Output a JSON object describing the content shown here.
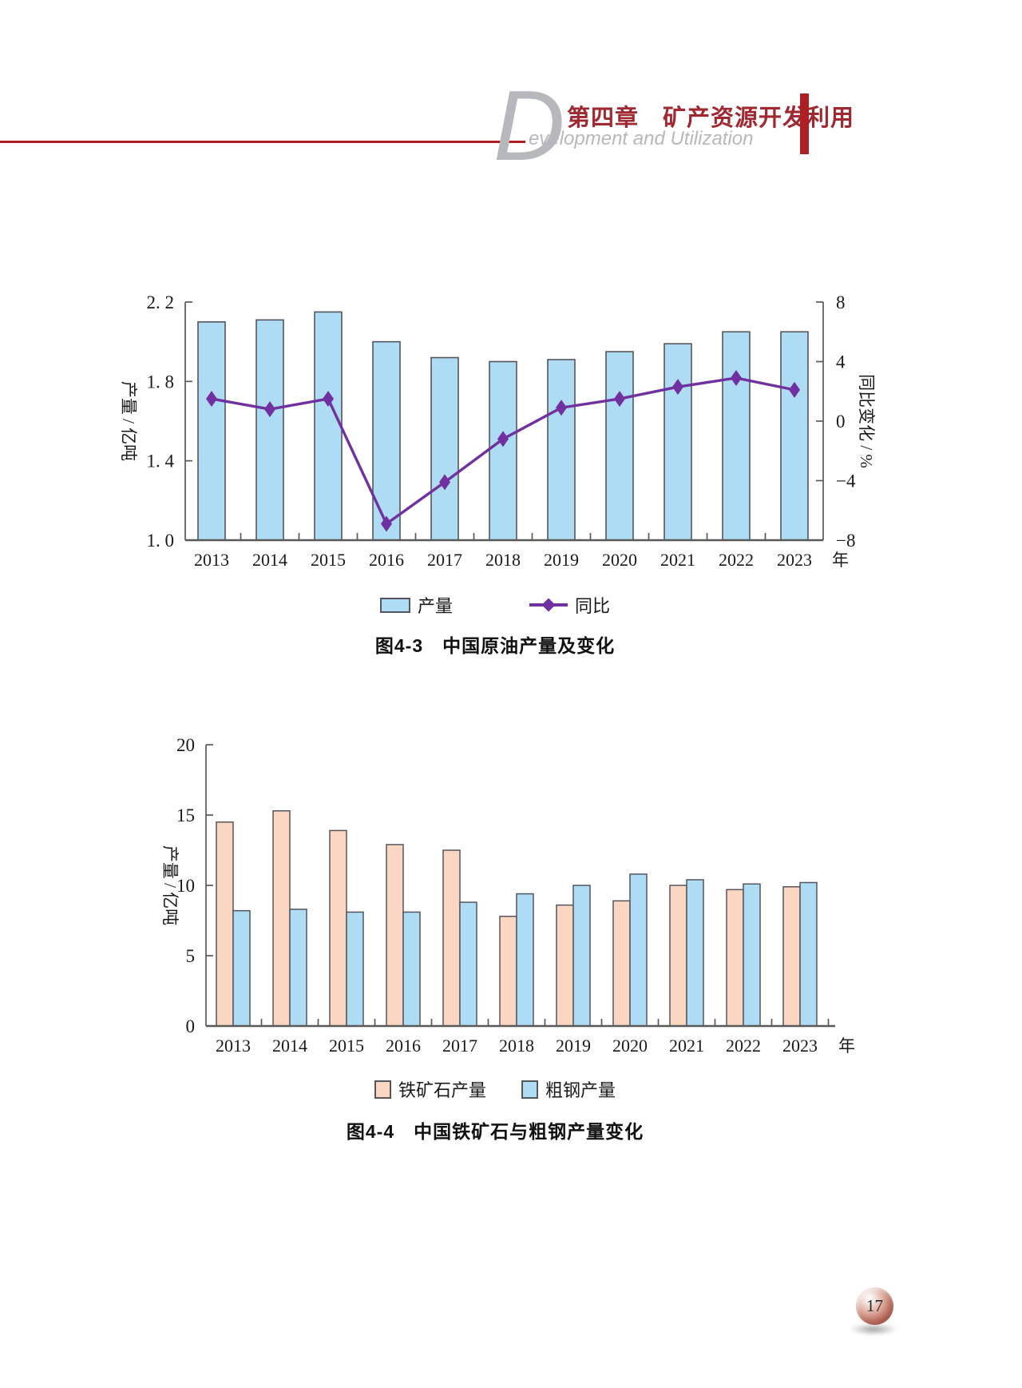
{
  "header": {
    "drop_cap": "D",
    "chapter_title": "第四章　矿产资源开发利用",
    "chapter_subtitle": "evelopment and Utilization"
  },
  "page_number": "17",
  "colors": {
    "accent_red": "#AD1F24",
    "title_red": "#A02830",
    "soft_gray": "#B7B8BB",
    "bar_blue": "#AEDCF4",
    "bar_pink": "#FAD6C3",
    "bar_stroke": "#54565B",
    "line_purple": "#7030A0",
    "axis_gray": "#595959"
  },
  "chart_data": [
    {
      "type": "bar+line",
      "title": "图4-3　中国原油产量及变化",
      "categories": [
        "2013",
        "2014",
        "2015",
        "2016",
        "2017",
        "2018",
        "2019",
        "2020",
        "2021",
        "2022",
        "2023"
      ],
      "x_axis_suffix": "年",
      "series": [
        {
          "name": "产量",
          "type": "bar",
          "axis": "left",
          "color": "#AEDCF4",
          "values": [
            2.1,
            2.11,
            2.15,
            2.0,
            1.92,
            1.9,
            1.91,
            1.95,
            1.99,
            2.05,
            2.05
          ]
        },
        {
          "name": "同比",
          "type": "line",
          "axis": "right",
          "color": "#7030A0",
          "values": [
            1.5,
            0.8,
            1.5,
            -6.9,
            -4.1,
            -1.2,
            0.9,
            1.5,
            2.3,
            2.9,
            2.1
          ]
        }
      ],
      "left_axis": {
        "label": "产量 / 亿吨",
        "min": 1.0,
        "max": 2.2,
        "ticks": [
          2.2,
          1.8,
          1.4,
          1.0
        ],
        "tick_labels": [
          "2. 2",
          "1. 8",
          "1. 4",
          "1. 0"
        ]
      },
      "right_axis": {
        "label": "同比变化 / %",
        "min": -8,
        "max": 8,
        "ticks": [
          8,
          4,
          0,
          -4,
          -8
        ],
        "tick_labels": [
          "8",
          "4",
          "0",
          "−4",
          "−8"
        ]
      },
      "grid": false,
      "legend_position": "bottom"
    },
    {
      "type": "bar",
      "title": "图4-4　中国铁矿石与粗钢产量变化",
      "categories": [
        "2013",
        "2014",
        "2015",
        "2016",
        "2017",
        "2018",
        "2019",
        "2020",
        "2021",
        "2022",
        "2023"
      ],
      "x_axis_suffix": "年",
      "series": [
        {
          "name": "铁矿石产量",
          "color": "#FAD6C3",
          "values": [
            14.5,
            15.3,
            13.9,
            12.9,
            12.5,
            7.8,
            8.6,
            8.9,
            10.0,
            9.7,
            9.9
          ]
        },
        {
          "name": "粗钢产量",
          "color": "#AEDCF4",
          "values": [
            8.2,
            8.3,
            8.1,
            8.1,
            8.8,
            9.4,
            10.0,
            10.8,
            10.4,
            10.1,
            10.2
          ]
        }
      ],
      "left_axis": {
        "label": "产量 / 亿吨",
        "min": 0,
        "max": 20,
        "ticks": [
          20,
          15,
          10,
          5,
          0
        ],
        "tick_labels": [
          "20",
          "15",
          "10",
          "5",
          "0"
        ]
      },
      "grid": false,
      "legend_position": "bottom"
    }
  ]
}
